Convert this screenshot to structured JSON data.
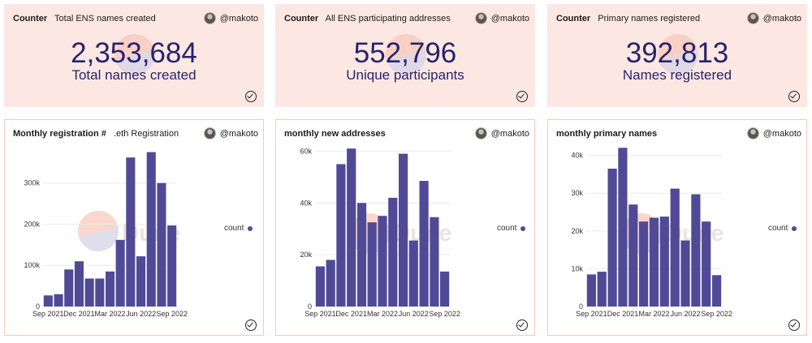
{
  "author": "@makoto",
  "counters": [
    {
      "kind": "Counter",
      "title": "Total ENS names created",
      "value": "2,353,684",
      "label": "Total names created"
    },
    {
      "kind": "Counter",
      "title": "All ENS participating addresses",
      "value": "552,796",
      "label": "Unique participants"
    },
    {
      "kind": "Counter",
      "title": "Primary names registered",
      "value": "392,813",
      "label": "Names registered"
    }
  ],
  "watermark_text": "Dune",
  "bar_color": "#504a96",
  "chart_data": [
    {
      "type": "bar",
      "title": "Monthly registration #",
      "subtitle": ".eth Registration",
      "x_tick_labels": [
        "Sep 2021",
        "Dec 2021",
        "Mar 2022",
        "Jun 2022",
        "Sep 2022"
      ],
      "categories": [
        "Sep 2021",
        "Oct 2021",
        "Nov 2021",
        "Dec 2021",
        "Jan 2022",
        "Feb 2022",
        "Mar 2022",
        "Apr 2022",
        "May 2022",
        "Jun 2022",
        "Jul 2022",
        "Aug 2022",
        "Sep 2022"
      ],
      "values": [
        27000,
        30000,
        90000,
        110000,
        68000,
        68000,
        85000,
        162000,
        362000,
        122000,
        375000,
        300000,
        197000
      ],
      "y_ticks": [
        0,
        100000,
        200000,
        300000
      ],
      "y_tick_labels": [
        "0",
        "100k",
        "200k",
        "300k"
      ],
      "ylim": [
        0,
        390000
      ],
      "legend": "count"
    },
    {
      "type": "bar",
      "title": "monthly new addresses",
      "x_tick_labels": [
        "Sep 2021",
        "Dec 2021",
        "Mar 2022",
        "Jun 2022",
        "Sep 2022"
      ],
      "categories": [
        "Sep 2021",
        "Oct 2021",
        "Nov 2021",
        "Dec 2021",
        "Jan 2022",
        "Feb 2022",
        "Mar 2022",
        "Apr 2022",
        "May 2022",
        "Jun 2022",
        "Jul 2022",
        "Aug 2022",
        "Sep 2022"
      ],
      "values": [
        15500,
        18000,
        55000,
        61000,
        40000,
        32500,
        35000,
        42000,
        59000,
        25500,
        48500,
        34500,
        13500
      ],
      "y_ticks": [
        0,
        20000,
        40000,
        60000
      ],
      "y_tick_labels": [
        "0",
        "20k",
        "40k",
        "60k"
      ],
      "ylim": [
        0,
        62000
      ],
      "legend": "count"
    },
    {
      "type": "bar",
      "title": "monthly primary names",
      "x_tick_labels": [
        "Sep 2021",
        "Dec 2021",
        "Mar 2022",
        "Jun 2022",
        "Sep 2022"
      ],
      "categories": [
        "Sep 2021",
        "Oct 2021",
        "Nov 2021",
        "Dec 2021",
        "Jan 2022",
        "Feb 2022",
        "Mar 2022",
        "Apr 2022",
        "May 2022",
        "Jun 2022",
        "Jul 2022",
        "Aug 2022",
        "Sep 2022"
      ],
      "values": [
        8500,
        9200,
        36500,
        42000,
        27000,
        22500,
        23500,
        23800,
        31200,
        17500,
        29700,
        22500,
        8300
      ],
      "y_ticks": [
        0,
        10000,
        20000,
        30000,
        40000
      ],
      "y_tick_labels": [
        "0",
        "10k",
        "20k",
        "30k",
        "40k"
      ],
      "ylim": [
        0,
        42500
      ],
      "legend": "count"
    }
  ]
}
